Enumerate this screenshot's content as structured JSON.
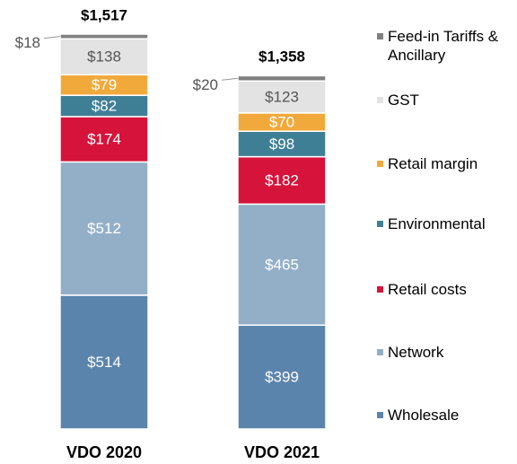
{
  "chart_data": {
    "type": "stacked_bar",
    "categories": [
      "VDO 2020",
      "VDO 2021"
    ],
    "series": [
      {
        "name": "Wholesale",
        "color": "#5b84ad",
        "values": [
          514,
          399
        ],
        "value_labels": [
          "$514",
          "$399"
        ]
      },
      {
        "name": "Network",
        "color": "#93afc8",
        "values": [
          512,
          465
        ],
        "value_labels": [
          "$512",
          "$465"
        ]
      },
      {
        "name": "Retail costs",
        "color": "#d6133a",
        "values": [
          174,
          182
        ],
        "value_labels": [
          "$174",
          "$182"
        ]
      },
      {
        "name": "Environmental",
        "color": "#3f7f96",
        "values": [
          82,
          98
        ],
        "value_labels": [
          "$82",
          "$98"
        ]
      },
      {
        "name": "Retail margin",
        "color": "#f2a93b",
        "values": [
          79,
          70
        ],
        "value_labels": [
          "$79",
          "$70"
        ]
      },
      {
        "name": "GST",
        "color": "#e3e3e3",
        "values": [
          138,
          123
        ],
        "value_labels": [
          "$138",
          "$123"
        ]
      },
      {
        "name": "Feed-in Tariffs & Ancillary",
        "color": "#808080",
        "values": [
          18,
          20
        ],
        "value_labels": [
          "$18",
          "$20"
        ]
      }
    ],
    "totals": [
      1517,
      1358
    ],
    "total_labels": [
      "$1,517",
      "$1,358"
    ]
  }
}
